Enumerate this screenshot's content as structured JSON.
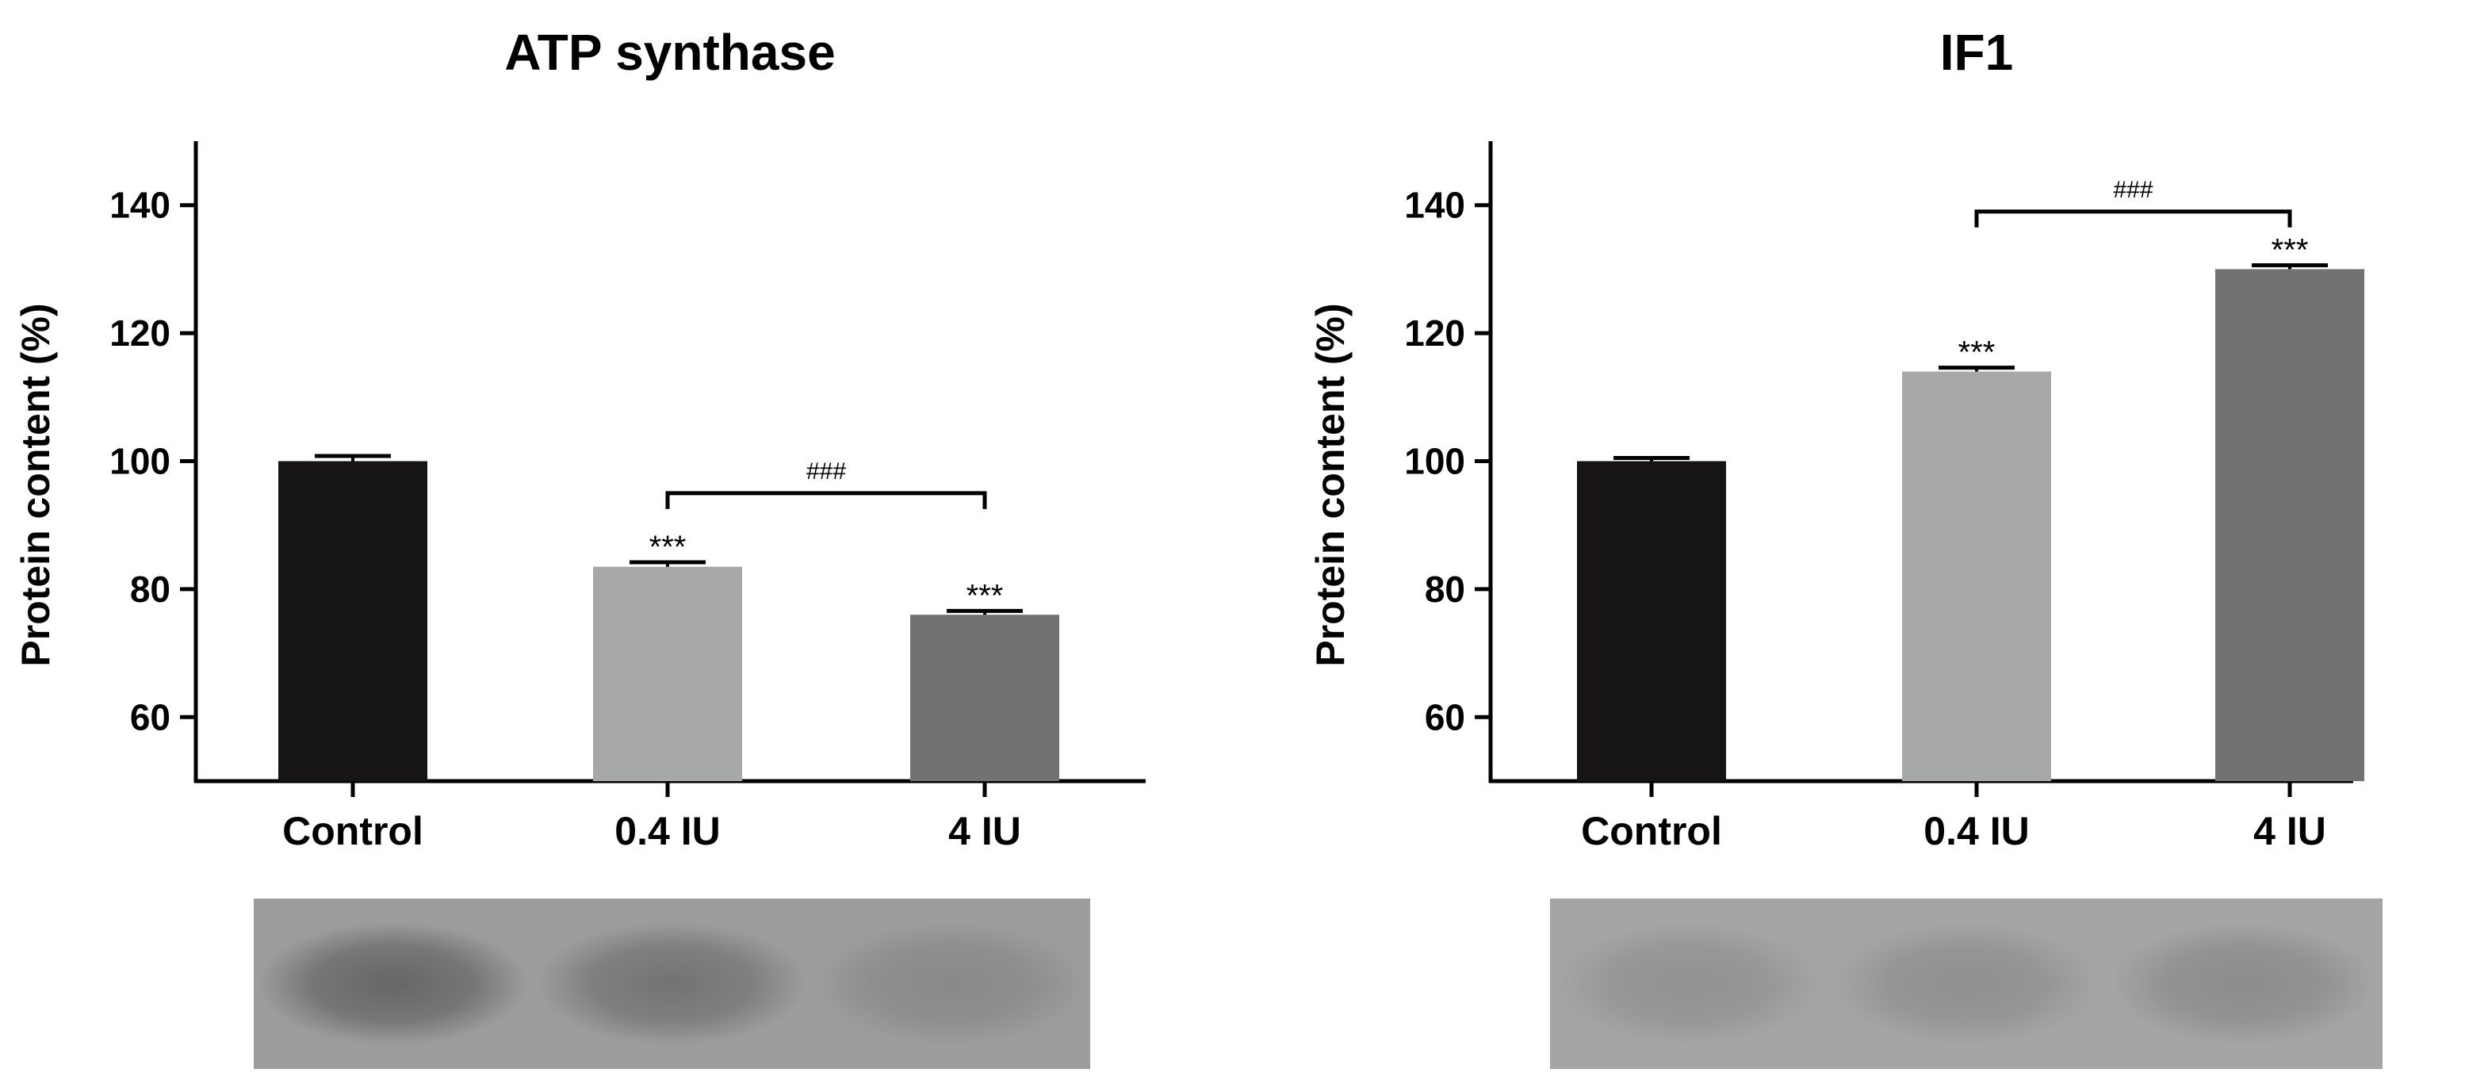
{
  "chart_data": [
    {
      "type": "bar",
      "title": "ATP synthase",
      "xlabel": "",
      "ylabel": "Protein content (%)",
      "ylim": [
        50,
        150
      ],
      "yticks": [
        60,
        80,
        100,
        120,
        140
      ],
      "categories": [
        "Control",
        "0.4 IU",
        "4 IU"
      ],
      "values": [
        100,
        83.5,
        76
      ],
      "errors": [
        0.8,
        0.7,
        0.6
      ],
      "bar_colors": [
        "#161414",
        "#a6a9a8",
        "#727272"
      ],
      "annotations": [
        "",
        "***",
        "***"
      ],
      "comparison": {
        "from": "0.4 IU",
        "to": "4 IU",
        "label": "###",
        "y": 95
      },
      "blot": {
        "background": "#9c9c9c",
        "bands": [
          0.55,
          0.42,
          0.2
        ]
      }
    },
    {
      "type": "bar",
      "title": "IF1",
      "xlabel": "",
      "ylabel": "Protein content (%)",
      "ylim": [
        50,
        150
      ],
      "yticks": [
        60,
        80,
        100,
        120,
        140
      ],
      "categories": [
        "Control",
        "0.4 IU",
        "4 IU"
      ],
      "values": [
        100,
        114,
        130
      ],
      "errors": [
        0.5,
        0.6,
        0.6
      ],
      "bar_colors": [
        "#161414",
        "#a6a9a8",
        "#727272"
      ],
      "annotations": [
        "",
        "***",
        "***"
      ],
      "comparison": {
        "from": "0.4 IU",
        "to": "4 IU",
        "label": "###",
        "y": 139
      },
      "blot": {
        "background": "#a5a5a5",
        "bands": [
          0.18,
          0.2,
          0.24
        ]
      }
    }
  ]
}
